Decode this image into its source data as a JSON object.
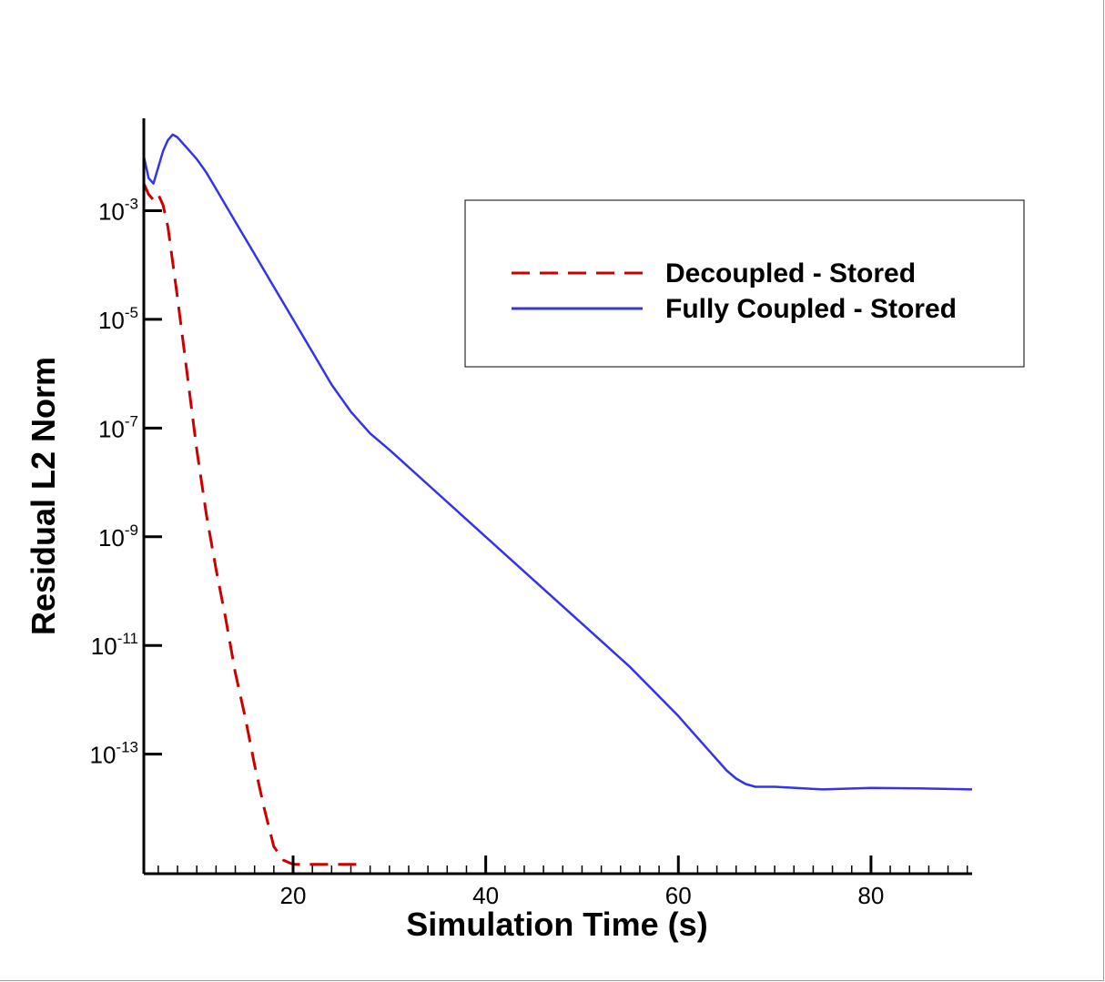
{
  "chart_data": {
    "type": "line",
    "title": "",
    "xlabel": "Simulation Time (s)",
    "ylabel": "Residual L2 Norm",
    "xlim": [
      4.5,
      90.5
    ],
    "ylim_log10": [
      -15.2,
      -1.3
    ],
    "x_ticks": [
      {
        "value": 20,
        "label": "20"
      },
      {
        "value": 40,
        "label": "40"
      },
      {
        "value": 60,
        "label": "60"
      },
      {
        "value": 80,
        "label": "80"
      }
    ],
    "y_ticks": [
      {
        "value": -3,
        "base": "10",
        "exp": "-3"
      },
      {
        "value": -5,
        "base": "10",
        "exp": "-5"
      },
      {
        "value": -7,
        "base": "10",
        "exp": "-7"
      },
      {
        "value": -9,
        "base": "10",
        "exp": "-9"
      },
      {
        "value": -11,
        "base": "10",
        "exp": "-11"
      },
      {
        "value": -13,
        "base": "10",
        "exp": "-13"
      }
    ],
    "y_scale": "log",
    "grid": false,
    "legend_position": "top-right",
    "series": [
      {
        "name": "Decoupled - Stored",
        "color": "#cc0000",
        "style": "dashed",
        "x": [
          4.5,
          5.0,
          5.5,
          6.0,
          6.5,
          7.0,
          8.0,
          9.0,
          10.0,
          11.0,
          12.0,
          13.0,
          14.0,
          15.0,
          16.0,
          17.0,
          18.0,
          19.0,
          20.0,
          20.5,
          21.0,
          22.0,
          24.0,
          26.0,
          27.5
        ],
        "log10_y": [
          -2.5,
          -2.7,
          -2.8,
          -2.7,
          -2.9,
          -3.3,
          -4.6,
          -6.0,
          -7.4,
          -8.6,
          -9.6,
          -10.5,
          -11.5,
          -12.3,
          -13.2,
          -14.0,
          -14.7,
          -14.95,
          -15.03,
          -15.03,
          -15.03,
          -15.03,
          -15.03,
          -15.03,
          -15.03
        ]
      },
      {
        "name": "Fully Coupled - Stored",
        "color": "#3333ee",
        "style": "solid",
        "x": [
          4.5,
          5.0,
          5.5,
          6.0,
          6.5,
          7.0,
          7.5,
          8.0,
          9.0,
          10.0,
          11.0,
          12.0,
          14.0,
          16.0,
          18.0,
          20.0,
          22.0,
          24.0,
          26.0,
          28.0,
          30.0,
          35.0,
          40.0,
          45.0,
          50.0,
          55.0,
          60.0,
          62.0,
          64.0,
          65.0,
          66.0,
          67.0,
          68.0,
          70.0,
          75.0,
          80.0,
          85.0,
          90.5
        ],
        "log10_y": [
          -2.0,
          -2.4,
          -2.5,
          -2.2,
          -1.9,
          -1.7,
          -1.6,
          -1.65,
          -1.85,
          -2.05,
          -2.3,
          -2.6,
          -3.2,
          -3.8,
          -4.4,
          -5.0,
          -5.6,
          -6.2,
          -6.7,
          -7.1,
          -7.4,
          -8.2,
          -9.0,
          -9.8,
          -10.6,
          -11.4,
          -12.3,
          -12.7,
          -13.1,
          -13.3,
          -13.45,
          -13.55,
          -13.6,
          -13.6,
          -13.65,
          -13.62,
          -13.63,
          -13.65
        ]
      }
    ]
  }
}
